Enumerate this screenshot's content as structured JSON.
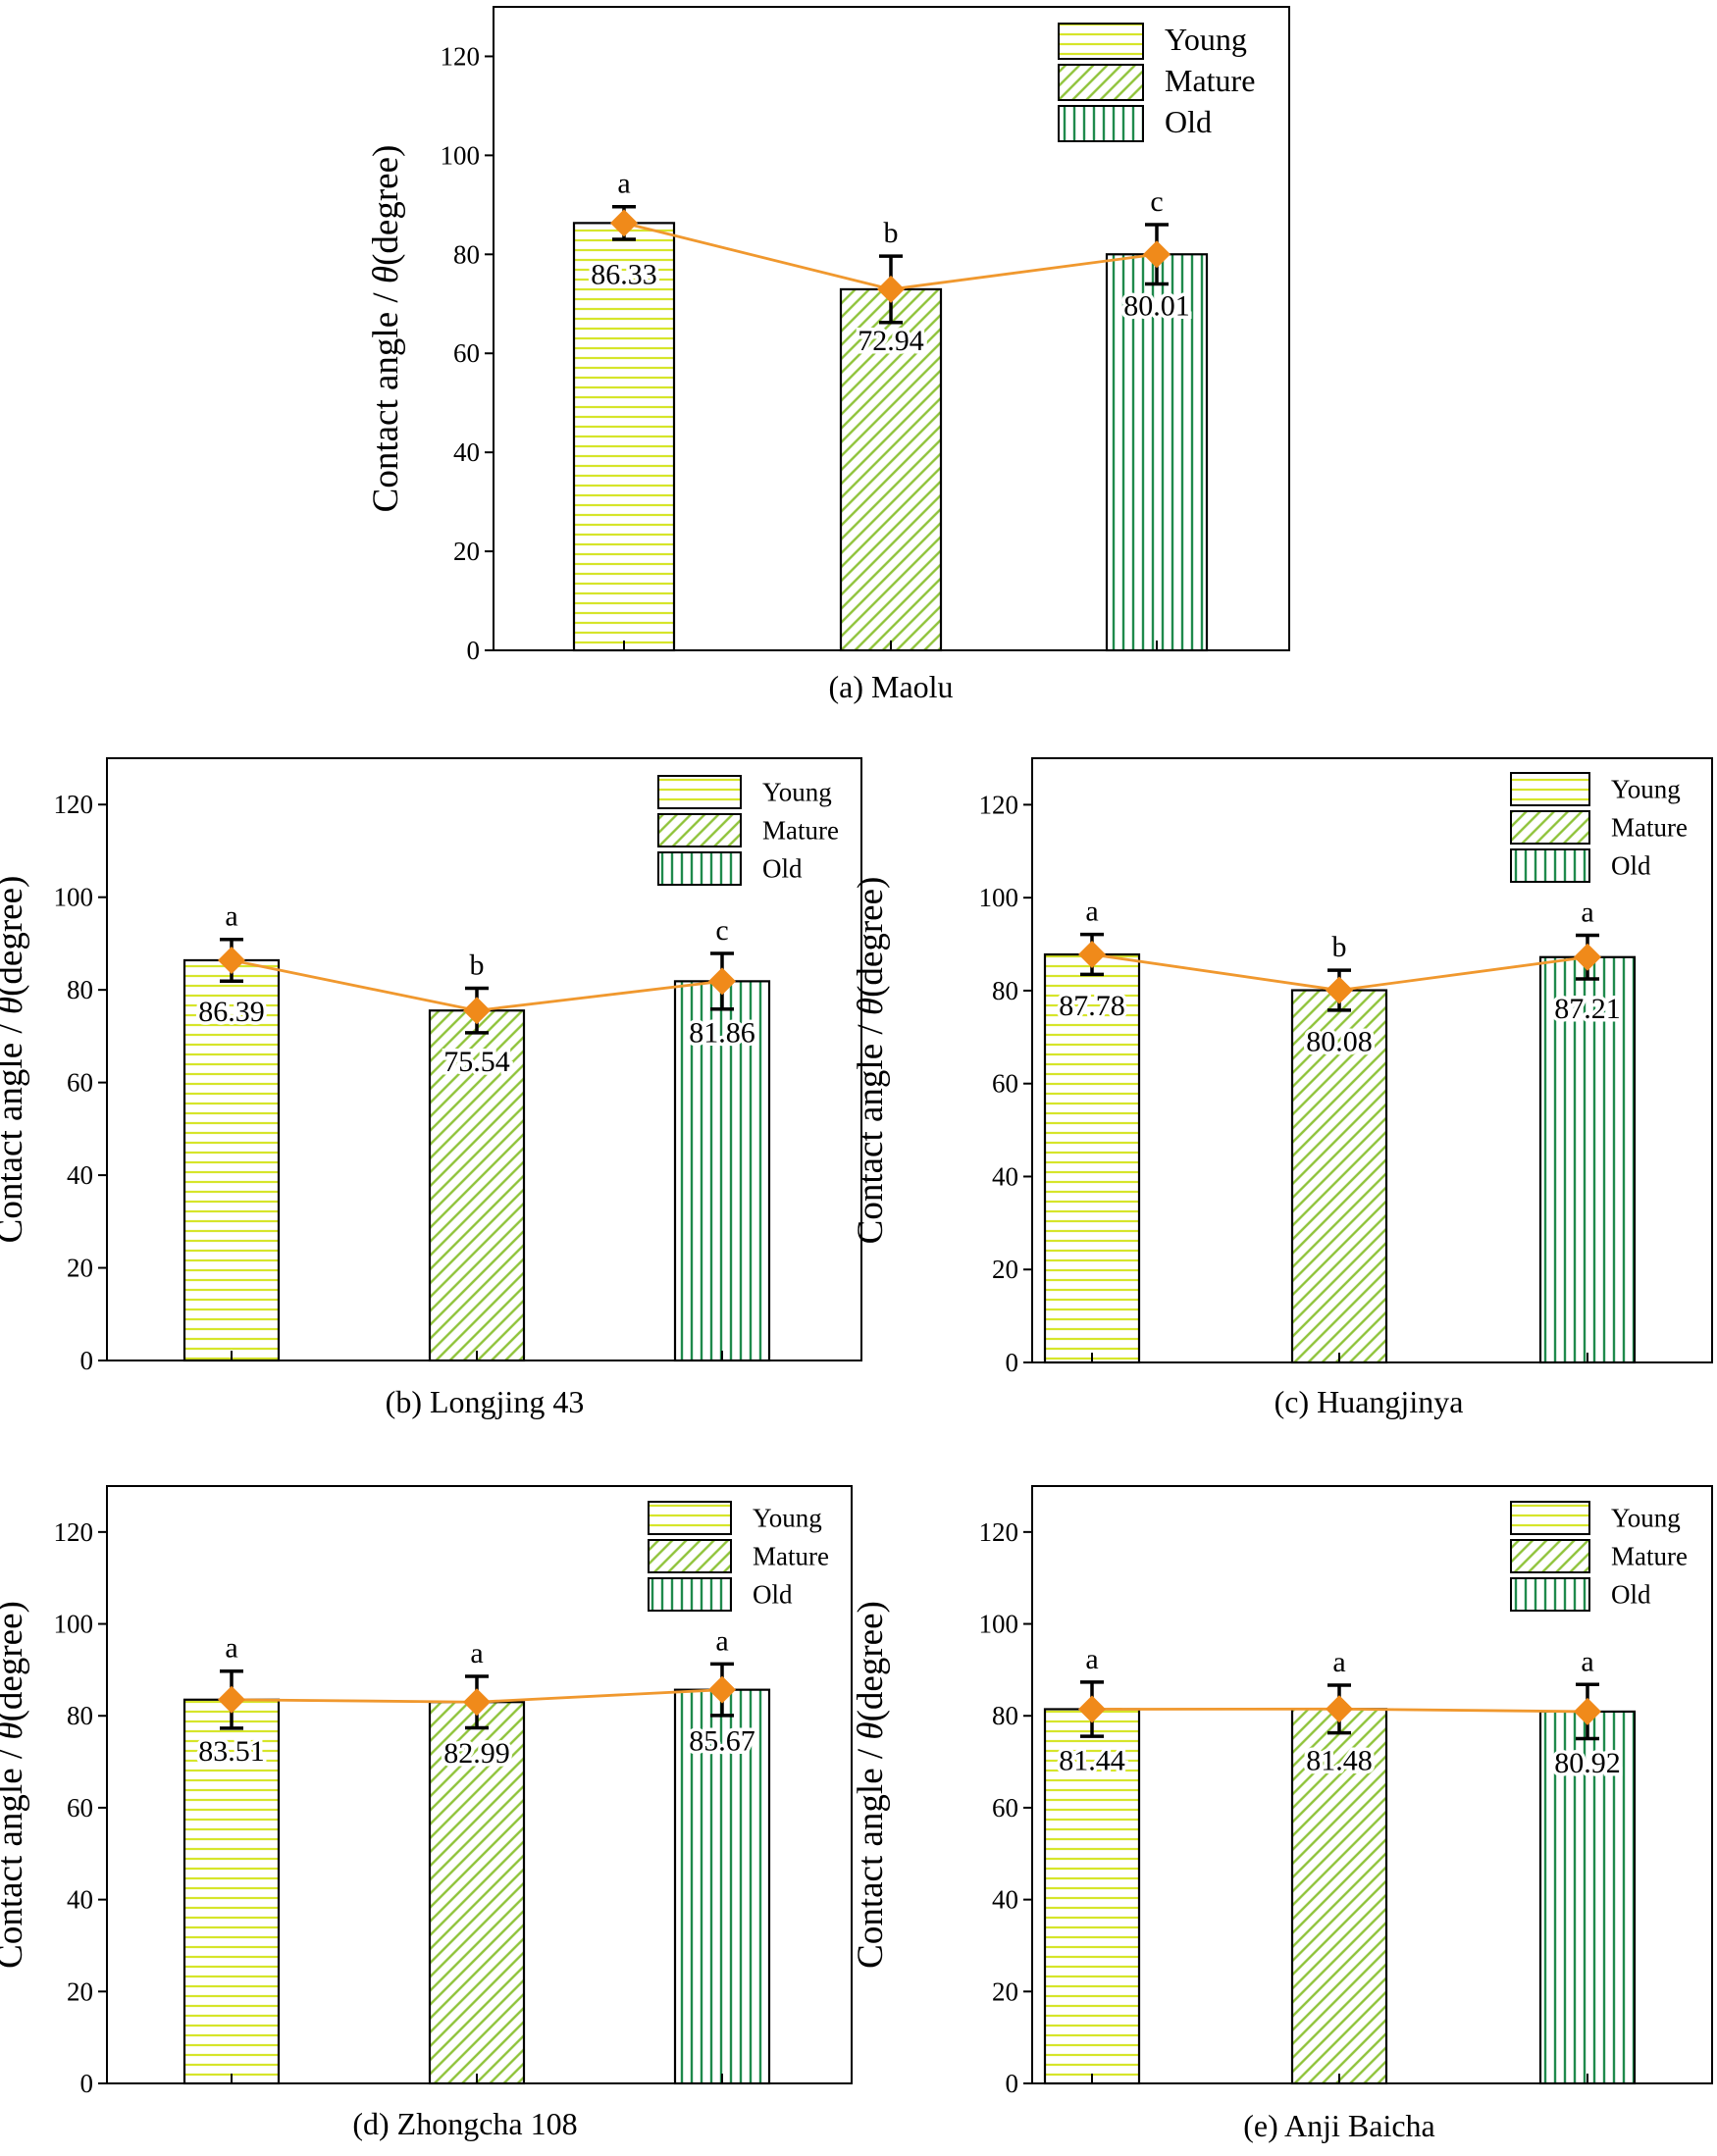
{
  "figure": {
    "ylabel_prefix": "Contact angle / ",
    "ylabel_theta": "θ",
    "ylabel_suffix": "(degree)",
    "ytick_labels": [
      "0",
      "20",
      "40",
      "60",
      "80",
      "100",
      "120"
    ],
    "legend": [
      "Young",
      "Mature",
      "Old"
    ]
  },
  "colors": {
    "young": "#d6e52a",
    "mature": "#8fc33a",
    "old": "#1f8a4c",
    "line": "#f0982e",
    "marker": "#f08a1a"
  },
  "chart_data": [
    {
      "type": "bar",
      "title": "(a) Maolu",
      "categories": [
        "Young",
        "Mature",
        "Old"
      ],
      "values": [
        86.33,
        72.94,
        80.01
      ],
      "value_labels": [
        "86.33",
        "72.94",
        "80.01"
      ],
      "errors": [
        3.3,
        6.7,
        6.0
      ],
      "significance": [
        "a",
        "b",
        "c"
      ],
      "ylabel": "Contact angle / θ(degree)",
      "ylim": [
        0,
        130
      ],
      "yticks": [
        0,
        20,
        40,
        60,
        80,
        100,
        120
      ]
    },
    {
      "type": "bar",
      "title": "(b) Longjing 43",
      "categories": [
        "Young",
        "Mature",
        "Old"
      ],
      "values": [
        86.39,
        75.54,
        81.86
      ],
      "value_labels": [
        "86.39",
        "75.54",
        "81.86"
      ],
      "errors": [
        4.5,
        4.8,
        6.0
      ],
      "significance": [
        "a",
        "b",
        "c"
      ],
      "ylabel": "Contact angle / θ(degree)",
      "ylim": [
        0,
        130
      ],
      "yticks": [
        0,
        20,
        40,
        60,
        80,
        100,
        120
      ]
    },
    {
      "type": "bar",
      "title": "(c) Huangjinya",
      "categories": [
        "Young",
        "Mature",
        "Old"
      ],
      "values": [
        87.78,
        80.08,
        87.21
      ],
      "value_labels": [
        "87.78",
        "80.08",
        "87.21"
      ],
      "errors": [
        4.3,
        4.3,
        4.7
      ],
      "significance": [
        "a",
        "b",
        "a"
      ],
      "ylabel": "Contact angle / θ(degree)",
      "ylim": [
        0,
        130
      ],
      "yticks": [
        0,
        20,
        40,
        60,
        80,
        100,
        120
      ]
    },
    {
      "type": "bar",
      "title": "(d) Zhongcha 108",
      "categories": [
        "Young",
        "Mature",
        "Old"
      ],
      "values": [
        83.51,
        82.99,
        85.67
      ],
      "value_labels": [
        "83.51",
        "82.99",
        "85.67"
      ],
      "errors": [
        6.2,
        5.6,
        5.6
      ],
      "significance": [
        "a",
        "a",
        "a"
      ],
      "ylabel": "Contact angle / θ(degree)",
      "ylim": [
        0,
        130
      ],
      "yticks": [
        0,
        20,
        40,
        60,
        80,
        100,
        120
      ]
    },
    {
      "type": "bar",
      "title": "(e) Anji Baicha",
      "categories": [
        "Young",
        "Mature",
        "Old"
      ],
      "values": [
        81.44,
        81.48,
        80.92
      ],
      "value_labels": [
        "81.44",
        "81.48",
        "80.92"
      ],
      "errors": [
        5.9,
        5.2,
        5.9
      ],
      "significance": [
        "a",
        "a",
        "a"
      ],
      "ylabel": "Contact angle / θ(degree)",
      "ylim": [
        0,
        130
      ],
      "yticks": [
        0,
        20,
        40,
        60,
        80,
        100,
        120
      ]
    }
  ]
}
